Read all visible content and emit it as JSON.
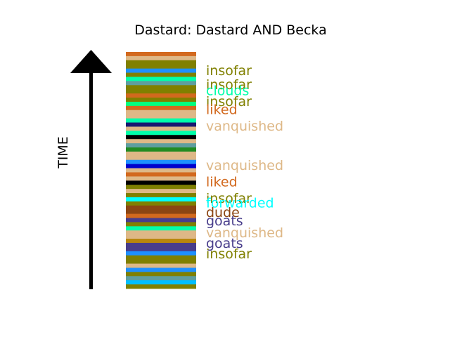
{
  "chart_data": {
    "type": "bar",
    "title": "Dastard: Dastard AND Becka",
    "ylabel": "TIME",
    "segments": [
      {
        "color": "#d2691e"
      },
      {
        "color": "#deb887"
      },
      {
        "color": "#808000"
      },
      {
        "color": "#808000"
      },
      {
        "color": "#1e90ff"
      },
      {
        "color": "#808000"
      },
      {
        "color": "#00ffaa"
      },
      {
        "color": "#5f9ea0"
      },
      {
        "color": "#808000"
      },
      {
        "color": "#808000"
      },
      {
        "color": "#d2691e"
      },
      {
        "color": "#808000"
      },
      {
        "color": "#00ff7f"
      },
      {
        "color": "#d2691e"
      },
      {
        "color": "#deb887"
      },
      {
        "color": "#deb887"
      },
      {
        "color": "#00ffaa"
      },
      {
        "color": "#191970"
      },
      {
        "color": "#deb887"
      },
      {
        "color": "#00ffaa"
      },
      {
        "color": "#000000"
      },
      {
        "color": "#deb887"
      },
      {
        "color": "#5f9ea0"
      },
      {
        "color": "#228b22"
      },
      {
        "color": "#deb887"
      },
      {
        "color": "#deb887"
      },
      {
        "color": "#1e90ff"
      },
      {
        "color": "#0000cd"
      },
      {
        "color": "#deb887"
      },
      {
        "color": "#d2691e"
      },
      {
        "color": "#deb887"
      },
      {
        "color": "#000000"
      },
      {
        "color": "#808000"
      },
      {
        "color": "#deb887"
      },
      {
        "color": "#808000"
      },
      {
        "color": "#00ffff"
      },
      {
        "color": "#808000"
      },
      {
        "color": "#8b4513"
      },
      {
        "color": "#8b4513"
      },
      {
        "color": "#d2691e"
      },
      {
        "color": "#483d8b"
      },
      {
        "color": "#808000"
      },
      {
        "color": "#00ffaa"
      },
      {
        "color": "#deb887"
      },
      {
        "color": "#deb887"
      },
      {
        "color": "#b8860b"
      },
      {
        "color": "#483d8b"
      },
      {
        "color": "#483d8b"
      },
      {
        "color": "#1e90ff"
      },
      {
        "color": "#808000"
      },
      {
        "color": "#808000"
      },
      {
        "color": "#deb887"
      },
      {
        "color": "#1e90ff"
      },
      {
        "color": "#808000"
      },
      {
        "color": "#5f9ea0"
      },
      {
        "color": "#00bfff"
      },
      {
        "color": "#808000"
      }
    ],
    "labels": [
      {
        "text": "insofar",
        "color": "#808000",
        "pos": 0.92
      },
      {
        "text": "insofar",
        "color": "#808000",
        "pos": 0.86
      },
      {
        "text": "clouds",
        "color": "#00ffaa",
        "pos": 0.835
      },
      {
        "text": "insofar",
        "color": "#808000",
        "pos": 0.79
      },
      {
        "text": "liked",
        "color": "#d2691e",
        "pos": 0.755
      },
      {
        "text": "vanquished",
        "color": "#deb887",
        "pos": 0.685
      },
      {
        "text": "vanquished",
        "color": "#deb887",
        "pos": 0.52
      },
      {
        "text": "liked",
        "color": "#d2691e",
        "pos": 0.45
      },
      {
        "text": "insofar",
        "color": "#808000",
        "pos": 0.38
      },
      {
        "text": "forwarded",
        "color": "#00ffff",
        "pos": 0.36
      },
      {
        "text": "dude",
        "color": "#8b4513",
        "pos": 0.32
      },
      {
        "text": "goats",
        "color": "#483d8b",
        "pos": 0.285
      },
      {
        "text": "vanquished",
        "color": "#deb887",
        "pos": 0.235
      },
      {
        "text": "goats",
        "color": "#483d8b",
        "pos": 0.19
      },
      {
        "text": "insofar",
        "color": "#808000",
        "pos": 0.145
      }
    ]
  }
}
